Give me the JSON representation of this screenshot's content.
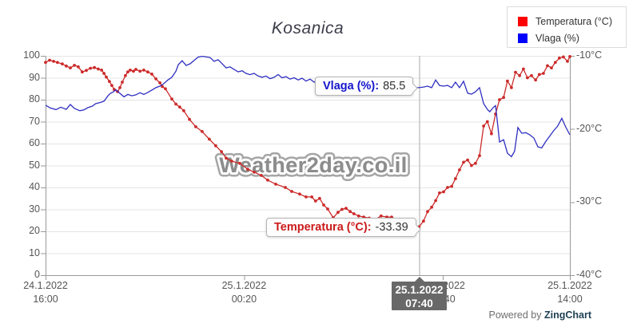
{
  "title": "Kosanica",
  "watermark": "Weather2day.co.il",
  "legend": {
    "items": [
      {
        "label": "Temperatura (°C)",
        "color": "#ff0000"
      },
      {
        "label": "Vlaga (%)",
        "color": "#0000ff"
      }
    ]
  },
  "tooltips": {
    "vlaga": {
      "label": "Vlaga (%):",
      "value": "85.5"
    },
    "temperatura": {
      "label": "Temperatura (°C):",
      "value": "-33.39"
    }
  },
  "crosshair_label": {
    "date": "25.1.2022",
    "time": "07:40"
  },
  "powered_by": {
    "prefix": "Powered by ",
    "brand": "ZingChart"
  },
  "chart_data": {
    "type": "line",
    "title": "Kosanica",
    "grid": true,
    "legend_position": "top-right",
    "colors": {
      "temperatura": "#cd2b2b",
      "vlaga": "#2f2fc1",
      "gridline": "#e4e4e4",
      "axis": "#999999",
      "crosshair": "#aaaaaa",
      "crosshair_box": "#686868",
      "watermark": "#8d8d8d"
    },
    "x_axis": {
      "unit": "hours from 24.1.2022 16:00",
      "range_hours": [
        0,
        22
      ],
      "ticks": [
        {
          "date": "24.1.2022",
          "time": "16:00",
          "h": 0
        },
        {
          "date": "25.1.2022",
          "time": "00:20",
          "h": 8.33
        },
        {
          "date": "25.1.2022",
          "time": "08:40",
          "h": 16.67
        },
        {
          "date": "25.1.2022",
          "time": "14:00",
          "h": 22
        }
      ]
    },
    "y_left": {
      "label": "Vlaga (%)",
      "range": [
        0,
        100
      ],
      "ticks": [
        100,
        90,
        80,
        70,
        60,
        50,
        40,
        30,
        20,
        10,
        0
      ]
    },
    "y_right": {
      "label": "Temperatura (°C)",
      "range": [
        -40,
        -10
      ],
      "ticks": [
        {
          "label": "-10°C",
          "value": -10
        },
        {
          "label": "-20°C",
          "value": -20
        },
        {
          "label": "-30°C",
          "value": -30
        },
        {
          "label": "-40°C",
          "value": -40
        }
      ]
    },
    "crosshair": {
      "hour": 15.67,
      "date": "25.1.2022",
      "time": "07:40",
      "vlaga": 85.5,
      "temperatura": -33.39
    },
    "series": [
      {
        "name": "Temperatura (°C)",
        "axis": "right",
        "marker": true,
        "color": "#cd2b2b",
        "points": [
          [
            0,
            -10.9
          ],
          [
            0.17,
            -10.6
          ],
          [
            0.34,
            -10.75
          ],
          [
            0.5,
            -10.9
          ],
          [
            0.7,
            -11.1
          ],
          [
            0.87,
            -11.4
          ],
          [
            1.04,
            -11.65
          ],
          [
            1.21,
            -11.3
          ],
          [
            1.37,
            -11.5
          ],
          [
            1.54,
            -12.2
          ],
          [
            1.71,
            -12.0
          ],
          [
            1.88,
            -11.7
          ],
          [
            2.05,
            -11.6
          ],
          [
            2.21,
            -11.8
          ],
          [
            2.35,
            -11.95
          ],
          [
            2.45,
            -12.4
          ],
          [
            2.55,
            -12.9
          ],
          [
            2.68,
            -13.5
          ],
          [
            2.78,
            -14.05
          ],
          [
            2.88,
            -14.6
          ],
          [
            3.02,
            -14.9
          ],
          [
            3.12,
            -14.35
          ],
          [
            3.22,
            -13.6
          ],
          [
            3.35,
            -12.7
          ],
          [
            3.45,
            -12.2
          ],
          [
            3.55,
            -11.95
          ],
          [
            3.69,
            -12.1
          ],
          [
            3.79,
            -11.85
          ],
          [
            3.96,
            -12.1
          ],
          [
            4.12,
            -11.95
          ],
          [
            4.29,
            -12.2
          ],
          [
            4.46,
            -12.5
          ],
          [
            4.63,
            -13.15
          ],
          [
            4.8,
            -13.7
          ],
          [
            4.9,
            -14.2
          ],
          [
            5.03,
            -14.5
          ],
          [
            5.3,
            -15.9
          ],
          [
            5.47,
            -16.6
          ],
          [
            5.63,
            -17.0
          ],
          [
            5.8,
            -17.5
          ],
          [
            6.04,
            -18.7
          ],
          [
            6.3,
            -19.7
          ],
          [
            6.57,
            -20.35
          ],
          [
            6.87,
            -21.4
          ],
          [
            7.14,
            -22.3
          ],
          [
            7.38,
            -23.1
          ],
          [
            7.58,
            -24.0
          ],
          [
            7.81,
            -24.4
          ],
          [
            8.15,
            -24.7
          ],
          [
            8.48,
            -25.5
          ],
          [
            8.75,
            -25.9
          ],
          [
            9.05,
            -26.35
          ],
          [
            9.32,
            -27.0
          ],
          [
            9.66,
            -27.55
          ],
          [
            10.06,
            -28.0
          ],
          [
            10.33,
            -28.55
          ],
          [
            10.66,
            -28.9
          ],
          [
            10.93,
            -29.3
          ],
          [
            11.17,
            -29.3
          ],
          [
            11.33,
            -29.85
          ],
          [
            11.5,
            -29.5
          ],
          [
            11.67,
            -30.4
          ],
          [
            11.84,
            -30.95
          ],
          [
            12.07,
            -32.15
          ],
          [
            12.27,
            -31.4
          ],
          [
            12.44,
            -31.0
          ],
          [
            12.61,
            -30.85
          ],
          [
            12.78,
            -31.3
          ],
          [
            12.94,
            -31.6
          ],
          [
            13.14,
            -31.9
          ],
          [
            13.35,
            -32.05
          ],
          [
            13.58,
            -32.2
          ],
          [
            13.85,
            -32.35
          ],
          [
            14.08,
            -31.9
          ],
          [
            14.32,
            -32.05
          ],
          [
            14.52,
            -32.05
          ],
          [
            14.76,
            -32.5
          ],
          [
            15.02,
            -33.0
          ],
          [
            15.26,
            -32.8
          ],
          [
            15.46,
            -33.25
          ],
          [
            15.67,
            -33.39
          ],
          [
            15.86,
            -32.6
          ],
          [
            16.03,
            -31.3
          ],
          [
            16.2,
            -30.7
          ],
          [
            16.37,
            -29.8
          ],
          [
            16.53,
            -28.75
          ],
          [
            16.7,
            -28.6
          ],
          [
            16.87,
            -28.0
          ],
          [
            17.04,
            -27.85
          ],
          [
            17.2,
            -26.8
          ],
          [
            17.37,
            -25.6
          ],
          [
            17.54,
            -24.55
          ],
          [
            17.71,
            -24.25
          ],
          [
            17.87,
            -25.0
          ],
          [
            18.04,
            -24.7
          ],
          [
            18.21,
            -23.65
          ],
          [
            18.38,
            -19.6
          ],
          [
            18.54,
            -19.0
          ],
          [
            18.71,
            -20.65
          ],
          [
            18.88,
            -17.95
          ],
          [
            19.05,
            -16.0
          ],
          [
            19.22,
            -15.7
          ],
          [
            19.38,
            -13.45
          ],
          [
            19.55,
            -14.35
          ],
          [
            19.72,
            -12.25
          ],
          [
            19.89,
            -12.7
          ],
          [
            20.05,
            -11.8
          ],
          [
            20.22,
            -13.0
          ],
          [
            20.39,
            -12.7
          ],
          [
            20.56,
            -13.3
          ],
          [
            20.72,
            -12.55
          ],
          [
            20.89,
            -12.4
          ],
          [
            21.06,
            -11.35
          ],
          [
            21.23,
            -11.65
          ],
          [
            21.39,
            -10.9
          ],
          [
            21.56,
            -10.3
          ],
          [
            21.73,
            -10.15
          ],
          [
            21.9,
            -10.75
          ],
          [
            22,
            -10.1
          ]
        ]
      },
      {
        "name": "Vlaga (%)",
        "axis": "left",
        "marker": false,
        "color": "#2f2fc1",
        "points": [
          [
            0,
            77.5
          ],
          [
            0.2,
            76.2
          ],
          [
            0.44,
            75.5
          ],
          [
            0.64,
            76.6
          ],
          [
            0.87,
            75.6
          ],
          [
            1.04,
            77.8
          ],
          [
            1.21,
            76.0
          ],
          [
            1.44,
            75.0
          ],
          [
            1.61,
            75.4
          ],
          [
            1.78,
            76.4
          ],
          [
            1.95,
            77.0
          ],
          [
            2.11,
            78.2
          ],
          [
            2.28,
            78.7
          ],
          [
            2.45,
            79.3
          ],
          [
            2.62,
            81.8
          ],
          [
            2.72,
            82.9
          ],
          [
            2.85,
            83.6
          ],
          [
            2.95,
            84.5
          ],
          [
            3.12,
            82.9
          ],
          [
            3.29,
            81.3
          ],
          [
            3.45,
            82.4
          ],
          [
            3.62,
            81.8
          ],
          [
            3.79,
            82.2
          ],
          [
            3.96,
            83.2
          ],
          [
            4.12,
            82.4
          ],
          [
            4.29,
            83.3
          ],
          [
            4.46,
            84.4
          ],
          [
            4.63,
            85.5
          ],
          [
            4.8,
            86.2
          ],
          [
            4.96,
            87.3
          ],
          [
            5.13,
            89.0
          ],
          [
            5.3,
            90.2
          ],
          [
            5.47,
            93.0
          ],
          [
            5.57,
            96.0
          ],
          [
            5.73,
            97.8
          ],
          [
            5.9,
            95.6
          ],
          [
            6.07,
            96.4
          ],
          [
            6.24,
            98.0
          ],
          [
            6.4,
            99.4
          ],
          [
            6.57,
            99.8
          ],
          [
            6.74,
            99.5
          ],
          [
            6.91,
            99.2
          ],
          [
            7.07,
            97.5
          ],
          [
            7.24,
            98.2
          ],
          [
            7.41,
            96.4
          ],
          [
            7.58,
            94.5
          ],
          [
            7.74,
            95.0
          ],
          [
            7.91,
            93.8
          ],
          [
            8.08,
            92.7
          ],
          [
            8.25,
            93.2
          ],
          [
            8.41,
            92.0
          ],
          [
            8.58,
            91.4
          ],
          [
            8.75,
            92.0
          ],
          [
            8.92,
            90.8
          ],
          [
            9.09,
            90.2
          ],
          [
            9.25,
            90.8
          ],
          [
            9.42,
            89.6
          ],
          [
            9.59,
            90.2
          ],
          [
            9.76,
            91.5
          ],
          [
            9.92,
            90.0
          ],
          [
            10.09,
            90.5
          ],
          [
            10.26,
            89.4
          ],
          [
            10.43,
            90.0
          ],
          [
            10.6,
            89.0
          ],
          [
            10.76,
            89.8
          ],
          [
            10.93,
            88.5
          ],
          [
            11.1,
            89.4
          ],
          [
            11.27,
            88.0
          ],
          [
            11.43,
            89.0
          ],
          [
            11.6,
            87.6
          ],
          [
            11.77,
            88.3
          ],
          [
            11.94,
            87.0
          ],
          [
            12.1,
            87.8
          ],
          [
            12.27,
            86.5
          ],
          [
            12.44,
            87.4
          ],
          [
            12.61,
            86.8
          ],
          [
            12.78,
            86.0
          ],
          [
            12.94,
            87.0
          ],
          [
            13.11,
            86.2
          ],
          [
            13.28,
            85.8
          ],
          [
            13.45,
            86.5
          ],
          [
            13.61,
            85.6
          ],
          [
            13.78,
            86.3
          ],
          [
            13.95,
            85.8
          ],
          [
            14.12,
            86.4
          ],
          [
            14.28,
            85.2
          ],
          [
            14.45,
            86.0
          ],
          [
            14.62,
            85.5
          ],
          [
            14.79,
            86.2
          ],
          [
            14.96,
            85.3
          ],
          [
            15.12,
            85.8
          ],
          [
            15.29,
            85.2
          ],
          [
            15.46,
            85.6
          ],
          [
            15.67,
            85.5
          ],
          [
            15.86,
            85.8
          ],
          [
            16.03,
            86.2
          ],
          [
            16.2,
            85.5
          ],
          [
            16.37,
            89.0
          ],
          [
            16.53,
            86.5
          ],
          [
            16.7,
            86.2
          ],
          [
            16.87,
            86.5
          ],
          [
            17.04,
            85.5
          ],
          [
            17.2,
            88.0
          ],
          [
            17.37,
            85.5
          ],
          [
            17.54,
            88.4
          ],
          [
            17.71,
            83.0
          ],
          [
            17.87,
            82.5
          ],
          [
            18.04,
            83.6
          ],
          [
            18.21,
            85.5
          ],
          [
            18.38,
            78.2
          ],
          [
            18.54,
            75.6
          ],
          [
            18.64,
            74.5
          ],
          [
            18.78,
            76.4
          ],
          [
            18.88,
            77.3
          ],
          [
            18.98,
            68.0
          ],
          [
            19.05,
            60.7
          ],
          [
            19.22,
            61.8
          ],
          [
            19.38,
            55.6
          ],
          [
            19.55,
            54.0
          ],
          [
            19.68,
            56.5
          ],
          [
            19.82,
            67.3
          ],
          [
            19.98,
            64.7
          ],
          [
            20.15,
            65.0
          ],
          [
            20.32,
            64.0
          ],
          [
            20.49,
            62.5
          ],
          [
            20.66,
            58.5
          ],
          [
            20.82,
            58.0
          ],
          [
            20.99,
            61.0
          ],
          [
            21.16,
            63.5
          ],
          [
            21.33,
            66.0
          ],
          [
            21.49,
            68.0
          ],
          [
            21.66,
            71.5
          ],
          [
            21.83,
            67.5
          ],
          [
            22,
            64.0
          ]
        ]
      }
    ]
  }
}
